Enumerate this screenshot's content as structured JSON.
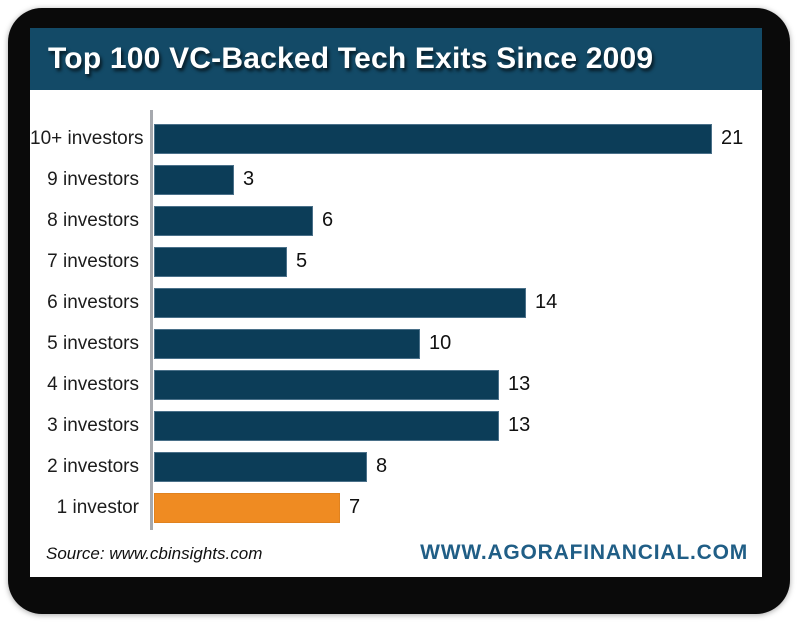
{
  "title": "Top 100 VC-Backed Tech Exits Since 2009",
  "chart_data": {
    "type": "bar",
    "orientation": "horizontal",
    "title": "Top 100 VC-Backed Tech Exits Since 2009",
    "categories": [
      "10+ investors",
      "9 investors",
      "8 investors",
      "7 investors",
      "6 investors",
      "5 investors",
      "4 investors",
      "3 investors",
      "2 investors",
      "1 investor"
    ],
    "values": [
      21,
      3,
      6,
      5,
      14,
      10,
      13,
      13,
      8,
      7
    ],
    "highlight_index": 9,
    "value_labels_shown": true,
    "grid": false,
    "legend": "none",
    "xlabel": "",
    "ylabel": "",
    "xlim": [
      0,
      23
    ]
  },
  "footer": {
    "source_label": "Source: www.cbinsights.com",
    "brand_label": "WWW.AGORAFINANCIAL.COM"
  },
  "colors": {
    "header_bg": "#134a67",
    "bar_default": "#0c3d58",
    "bar_highlight": "#ef8b22",
    "brand_text": "#205e86",
    "axis_line": "#a6a9ae",
    "frame": "#0a0a0a"
  }
}
